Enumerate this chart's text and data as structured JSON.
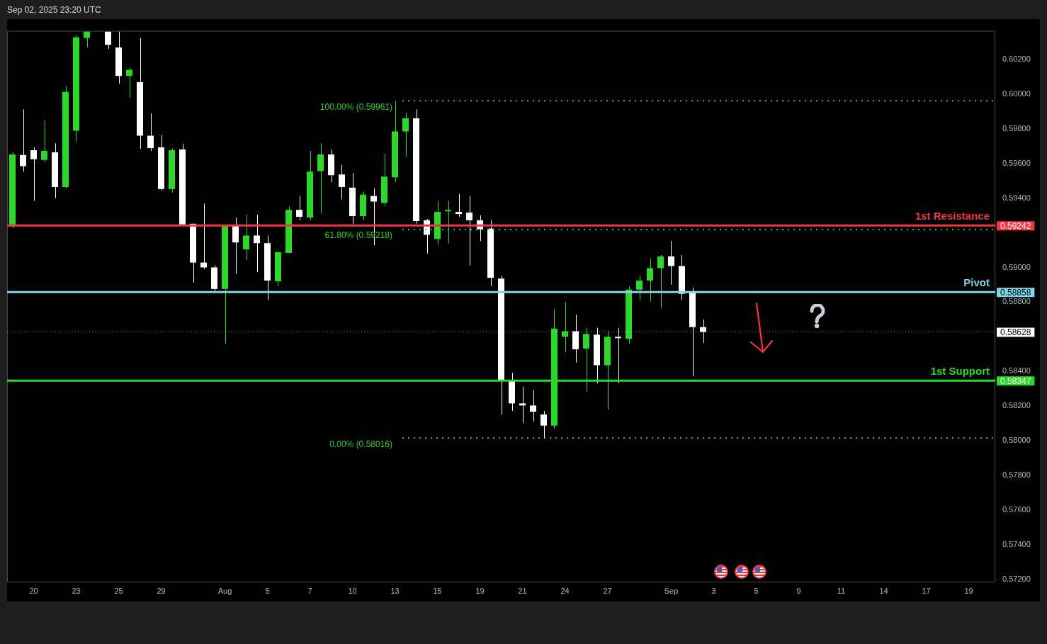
{
  "chart_data": {
    "type": "candlestick",
    "categories": [
      null,
      null,
      "20",
      null,
      null,
      null,
      "23",
      null,
      null,
      null,
      "25",
      null,
      null,
      null,
      "29",
      null,
      null,
      null,
      null,
      null,
      "Aug",
      null,
      null,
      null,
      "5",
      null,
      null,
      null,
      "7",
      null,
      null,
      null,
      "10",
      null,
      null,
      null,
      "13",
      null,
      null,
      null,
      "15",
      null,
      null,
      null,
      "19",
      null,
      null,
      null,
      "21",
      null,
      null,
      null,
      "24",
      null,
      null,
      null,
      "27",
      null,
      null,
      null,
      null,
      null,
      "Sep",
      null,
      null,
      null,
      "3",
      null,
      null,
      null,
      "5",
      null,
      null,
      null,
      "9",
      null,
      null,
      null,
      "11",
      null,
      null,
      null,
      "14",
      null,
      null,
      null,
      "17",
      null,
      null,
      null,
      "19",
      null,
      null
    ],
    "ohlc": [
      [
        0.59236,
        0.59668,
        0.59228,
        0.59652
      ],
      [
        0.59648,
        0.59912,
        0.59552,
        0.59584
      ],
      [
        0.59676,
        0.59692,
        0.59384,
        0.59624
      ],
      [
        0.5962,
        0.59848,
        0.59612,
        0.59672
      ],
      [
        0.59664,
        0.59716,
        0.594,
        0.59464
      ],
      [
        0.59464,
        0.60044,
        0.59456,
        0.60012
      ],
      [
        0.59788,
        0.6034,
        0.59724,
        0.60328
      ],
      [
        0.60324,
        0.6036,
        0.60268,
        0.6036
      ],
      null,
      [
        0.6036,
        0.6036,
        0.6026,
        0.60284
      ],
      [
        0.60268,
        0.6036,
        0.6006,
        0.60104
      ],
      [
        0.60104,
        0.60152,
        0.5998,
        0.6014
      ],
      [
        0.60068,
        0.60324,
        0.59684,
        0.5976
      ],
      [
        0.5976,
        0.59888,
        0.59672,
        0.59688
      ],
      [
        0.59692,
        0.59764,
        0.59444,
        0.59452
      ],
      [
        0.59452,
        0.59688,
        0.59432,
        0.59676
      ],
      [
        0.5968,
        0.59712,
        0.59248,
        0.59248
      ],
      [
        0.59252,
        0.59252,
        0.58912,
        0.59028
      ],
      [
        0.59028,
        0.59368,
        0.58992,
        0.59
      ],
      [
        0.59,
        0.59012,
        0.58864,
        0.58876
      ],
      [
        0.58876,
        0.59244,
        0.5856,
        0.59244
      ],
      [
        0.59244,
        0.59288,
        0.58964,
        0.59144
      ],
      [
        0.59104,
        0.59304,
        0.59044,
        0.59184
      ],
      [
        0.59184,
        0.59304,
        0.58972,
        0.5914
      ],
      [
        0.5914,
        0.59184,
        0.58812,
        0.58924
      ],
      [
        0.5892,
        0.59088,
        0.58892,
        0.59088
      ],
      [
        0.59084,
        0.59352,
        0.59084,
        0.59332
      ],
      [
        0.59332,
        0.59412,
        0.59272,
        0.59292
      ],
      [
        0.59288,
        0.59672,
        0.59272,
        0.59552
      ],
      [
        0.59556,
        0.59716,
        0.59312,
        0.59652
      ],
      [
        0.59652,
        0.5968,
        0.59492,
        0.59532
      ],
      [
        0.59536,
        0.59592,
        0.59392,
        0.59464
      ],
      [
        0.5946,
        0.59544,
        0.59252,
        0.59296
      ],
      [
        0.59296,
        0.5944,
        0.59272,
        0.5942
      ],
      [
        0.59412,
        0.59456,
        0.59128,
        0.5938
      ],
      [
        0.59372,
        0.59656,
        0.59352,
        0.59524
      ],
      [
        0.5952,
        0.59961,
        0.59492,
        0.59784
      ],
      [
        0.59784,
        0.59892,
        0.5964,
        0.5986
      ],
      [
        0.5986,
        0.59912,
        0.59252,
        0.59268
      ],
      [
        0.59272,
        0.5928,
        0.5908,
        0.59188
      ],
      [
        0.59164,
        0.59384,
        0.59132,
        0.5932
      ],
      [
        0.59324,
        0.59384,
        0.5914,
        0.59332
      ],
      [
        0.5932,
        0.59424,
        0.59292,
        0.59308
      ],
      [
        0.59316,
        0.59412,
        0.59012,
        0.59272
      ],
      [
        0.59272,
        0.593,
        0.59152,
        0.5922
      ],
      [
        0.59224,
        0.59272,
        0.58892,
        0.5894
      ],
      [
        0.58936,
        0.58952,
        0.58152,
        0.58348
      ],
      [
        0.58348,
        0.58392,
        0.58172,
        0.58216
      ],
      [
        0.58216,
        0.58312,
        0.58104,
        0.58204
      ],
      [
        0.58204,
        0.58292,
        0.58112,
        0.58168
      ],
      [
        0.58152,
        0.58172,
        0.58016,
        0.58088
      ],
      [
        0.58088,
        0.5876,
        0.58072,
        0.58648
      ],
      [
        0.586,
        0.588,
        0.58512,
        0.58632
      ],
      [
        0.58632,
        0.58728,
        0.58452,
        0.58528
      ],
      [
        0.58532,
        0.58652,
        0.58284,
        0.58616
      ],
      [
        0.58612,
        0.58652,
        0.58332,
        0.58436
      ],
      [
        0.58436,
        0.58632,
        0.5818,
        0.586
      ],
      [
        0.586,
        0.58652,
        0.58332,
        0.58592
      ],
      [
        0.58588,
        0.58892,
        0.5856,
        0.58872
      ],
      [
        0.58872,
        0.58952,
        0.58808,
        0.58924
      ],
      [
        0.58924,
        0.59052,
        0.58804,
        0.58996
      ],
      [
        0.58996,
        0.59072,
        0.58764,
        0.59064
      ],
      [
        0.59064,
        0.59152,
        0.589,
        0.59008
      ],
      [
        0.59008,
        0.59072,
        0.58812,
        0.58848
      ],
      [
        0.58856,
        0.58884,
        0.58372,
        0.58656
      ],
      [
        0.58656,
        0.587,
        0.58564,
        0.58628
      ],
      null,
      null,
      null,
      null,
      null,
      null,
      null,
      null,
      null,
      null,
      null,
      null,
      null,
      null,
      null,
      null,
      null,
      null,
      null,
      null,
      null,
      null,
      null,
      null,
      null,
      null,
      null
    ],
    "colors": [
      "#2bd92b",
      "#ffffff",
      "#ffffff",
      "#2bd92b",
      "#ffffff",
      "#2bd92b",
      "#2bd92b",
      "#2bd92b",
      null,
      "#ffffff",
      "#ffffff",
      "#2bd92b",
      "#ffffff",
      "#ffffff",
      "#ffffff",
      "#2bd92b",
      "#ffffff",
      "#ffffff",
      "#ffffff",
      "#ffffff",
      "#2bd92b",
      "#ffffff",
      "#2bd92b",
      "#ffffff",
      "#ffffff",
      "#2bd92b",
      "#2bd92b",
      "#ffffff",
      "#2bd92b",
      "#2bd92b",
      "#ffffff",
      "#ffffff",
      "#ffffff",
      "#2bd92b",
      "#ffffff",
      "#2bd92b",
      "#2bd92b",
      "#2bd92b",
      "#ffffff",
      "#ffffff",
      "#2bd92b",
      "#2bd92b",
      "#ffffff",
      "#ffffff",
      "#ffffff",
      "#ffffff",
      "#ffffff",
      "#ffffff",
      "#ffffff",
      "#ffffff",
      "#ffffff",
      "#2bd92b",
      "#2bd92b",
      "#ffffff",
      "#2bd92b",
      "#ffffff",
      "#2bd92b",
      "#ffffff",
      "#2bd92b",
      "#2bd92b",
      "#2bd92b",
      "#2bd92b",
      "#ffffff",
      "#ffffff",
      "#ffffff",
      "#ffffff",
      null,
      null,
      null,
      null,
      null,
      null,
      null,
      null,
      null,
      null,
      null,
      null,
      null,
      null,
      null,
      null,
      null,
      null,
      null,
      null,
      null,
      null,
      null,
      null,
      null,
      null,
      null
    ],
    "ylim": [
      0.57184,
      0.60364
    ],
    "yticks": [
      {
        "value": 0.572,
        "label": "0.57200"
      },
      {
        "value": 0.574,
        "label": "0.57400"
      },
      {
        "value": 0.576,
        "label": "0.57600"
      },
      {
        "value": 0.578,
        "label": "0.57800"
      },
      {
        "value": 0.58,
        "label": "0.58000"
      },
      {
        "value": 0.582,
        "label": "0.58200"
      },
      {
        "value": 0.584,
        "label": "0.58400"
      },
      {
        "value": 0.588,
        "label": "0.58800"
      },
      {
        "value": 0.59,
        "label": "0.59000"
      },
      {
        "value": 0.594,
        "label": "0.59400"
      },
      {
        "value": 0.596,
        "label": "0.59600"
      },
      {
        "value": 0.598,
        "label": "0.59800"
      },
      {
        "value": 0.6,
        "label": "0.60000"
      },
      {
        "value": 0.602,
        "label": "0.60200"
      }
    ],
    "ref_lines": [
      {
        "axis": "y",
        "value": 0.59961,
        "label": "100.00% (0.59961)",
        "color": "#32cd32",
        "line_style": "dotted"
      },
      {
        "axis": "y",
        "value": 0.59218,
        "label": "61.80% (0.59218)",
        "color": "#32cd32",
        "line_style": "dotted"
      },
      {
        "axis": "y",
        "value": 0.58016,
        "label": "0.00% (0.58016)",
        "color": "#32cd32",
        "line_style": "dotted"
      },
      {
        "axis": "y",
        "value": 0.59242,
        "label": "1st Resistance",
        "color": "#f23645",
        "line_style": "solid"
      },
      {
        "axis": "y",
        "value": 0.58858,
        "label": "Pivot",
        "color": "#7fd6e8",
        "line_style": "solid"
      },
      {
        "axis": "y",
        "value": 0.58347,
        "label": "1st Support",
        "color": "#2bd92b",
        "line_style": "solid"
      },
      {
        "axis": "y",
        "value": 0.58628,
        "color": "#ffffff",
        "line_style": "dotted"
      }
    ],
    "annotations": [
      "Sep 02, 2025 23:20 UTC",
      "0.59242",
      "0.58858",
      "0.58628",
      "0.58347"
    ],
    "grid": false
  }
}
